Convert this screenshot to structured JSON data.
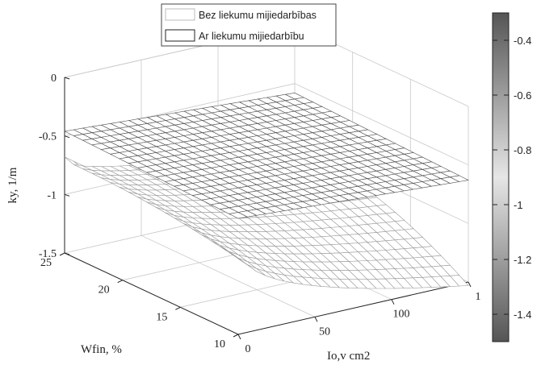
{
  "chart_data": {
    "type": "surface",
    "legend": {
      "placement": "top-center",
      "entries": [
        "Bez liekumu mijiedarbības",
        "Ar liekumu mijiedarbību"
      ]
    },
    "axes": {
      "z": {
        "label": "ky, 1/m",
        "ticks": [
          "0",
          "-0.5",
          "-1",
          "-1.5"
        ],
        "range": [
          -1.5,
          0
        ]
      },
      "y": {
        "label": "Wfin, %",
        "ticks": [
          "25",
          "20",
          "15",
          "10"
        ],
        "range": [
          10,
          25
        ]
      },
      "x": {
        "label": "Io,v  cm2",
        "ticks": [
          "0",
          "50",
          "100",
          "1"
        ],
        "range": [
          0,
          150
        ]
      }
    },
    "colorbar": {
      "ticks": [
        "-0.4",
        "-0.6",
        "-0.8",
        "-1",
        "-1.2",
        "-1.4"
      ],
      "range": [
        -1.5,
        -0.3
      ],
      "color_high": "#555555",
      "color_mid": "#e0e0e0",
      "color_low": "#555555"
    },
    "series": [
      {
        "name": "Bez liekumu mijiedarbības",
        "description_values": {
          "Wfin": [
            10,
            25
          ],
          "Io": [
            0,
            150
          ],
          "ky_min": -1.5,
          "ky_max": -0.65
        }
      },
      {
        "name": "Ar liekumu mijiedarbību",
        "description_values": {
          "Wfin": [
            10,
            25
          ],
          "Io": [
            0,
            150
          ],
          "ky_min": -0.6,
          "ky_max": -0.45
        }
      }
    ],
    "grid": true
  }
}
